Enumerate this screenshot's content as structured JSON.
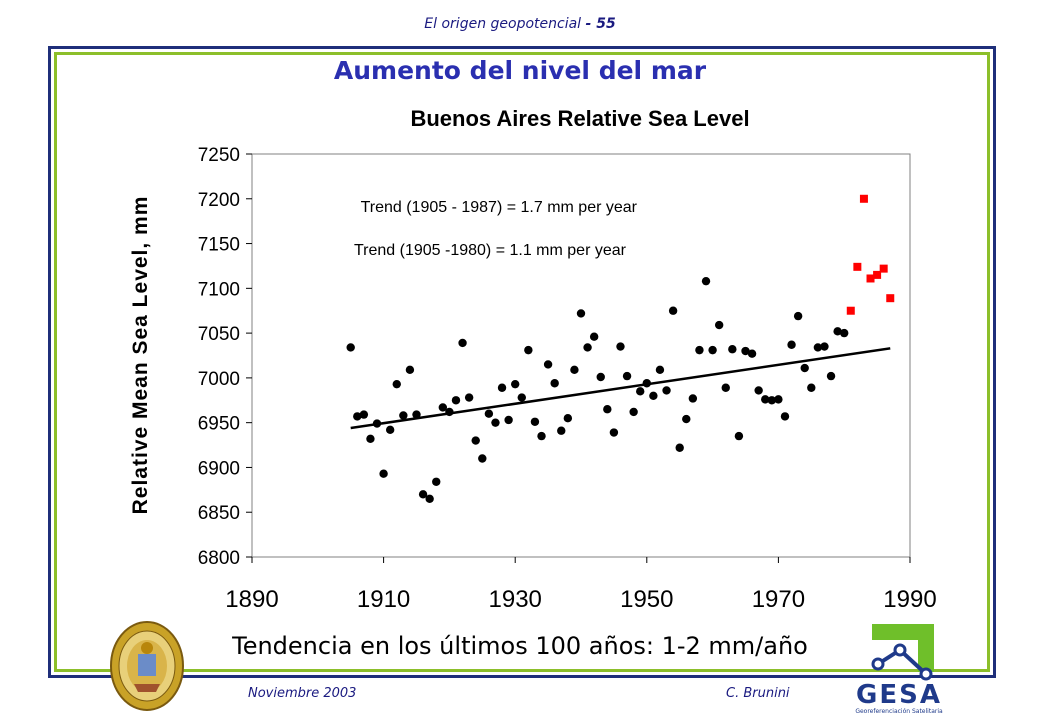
{
  "header": {
    "title": "El origen geopotencial",
    "page": "- 55"
  },
  "slide": {
    "title": "Aumento del nivel del mar",
    "subtitle": "Tendencia en los últimos 100 años: 1-2 mm/año"
  },
  "footer": {
    "date": "Noviembre 2003",
    "author": "C. Brunini"
  },
  "logos": {
    "gesa_name": "GESA",
    "gesa_tagline": "Georeferenciación Satelitaria",
    "gesa_colors": {
      "blue": "#1f3a8a",
      "green": "#6fbf2a"
    }
  },
  "chart_data": {
    "type": "scatter",
    "title": "Buenos Aires Relative Sea Level",
    "xlabel": "",
    "ylabel": "Relative Mean Sea Level, mm",
    "xlim": [
      1890,
      1990
    ],
    "ylim": [
      6800,
      7250
    ],
    "xticks": [
      1890,
      1910,
      1930,
      1950,
      1970,
      1990
    ],
    "yticks": [
      6800,
      6850,
      6900,
      6950,
      7000,
      7050,
      7100,
      7150,
      7200,
      7250
    ],
    "grid": false,
    "annotations": [
      {
        "text": "Trend (1905 - 1987) = 1.7 mm per year",
        "x": 1906.5,
        "y": 7185
      },
      {
        "text": "Trend (1905 -1980) = 1.1 mm per year",
        "x": 1905.5,
        "y": 7137
      }
    ],
    "series": [
      {
        "color": "#000000",
        "marker": "circle",
        "points": [
          [
            1905,
            7034
          ],
          [
            1906,
            6957
          ],
          [
            1907,
            6959
          ],
          [
            1908,
            6932
          ],
          [
            1909,
            6949
          ],
          [
            1910,
            6893
          ],
          [
            1911,
            6942
          ],
          [
            1912,
            6993
          ],
          [
            1913,
            6958
          ],
          [
            1914,
            7009
          ],
          [
            1915,
            6959
          ],
          [
            1916,
            6870
          ],
          [
            1917,
            6865
          ],
          [
            1918,
            6884
          ],
          [
            1919,
            6967
          ],
          [
            1920,
            6962
          ],
          [
            1921,
            6975
          ],
          [
            1922,
            7039
          ],
          [
            1923,
            6978
          ],
          [
            1924,
            6930
          ],
          [
            1925,
            6910
          ],
          [
            1926,
            6960
          ],
          [
            1927,
            6950
          ],
          [
            1928,
            6989
          ],
          [
            1929,
            6953
          ],
          [
            1930,
            6993
          ],
          [
            1931,
            6978
          ],
          [
            1932,
            7031
          ],
          [
            1933,
            6951
          ],
          [
            1934,
            6935
          ],
          [
            1935,
            7015
          ],
          [
            1936,
            6994
          ],
          [
            1937,
            6941
          ],
          [
            1938,
            6955
          ],
          [
            1939,
            7009
          ],
          [
            1940,
            7072
          ],
          [
            1941,
            7034
          ],
          [
            1942,
            7046
          ],
          [
            1943,
            7001
          ],
          [
            1944,
            6965
          ],
          [
            1945,
            6939
          ],
          [
            1946,
            7035
          ],
          [
            1947,
            7002
          ],
          [
            1948,
            6962
          ],
          [
            1949,
            6985
          ],
          [
            1950,
            6994
          ],
          [
            1951,
            6980
          ],
          [
            1952,
            7009
          ],
          [
            1953,
            6986
          ],
          [
            1954,
            7075
          ],
          [
            1955,
            6922
          ],
          [
            1956,
            6954
          ],
          [
            1957,
            6977
          ],
          [
            1958,
            7031
          ],
          [
            1959,
            7108
          ],
          [
            1960,
            7031
          ],
          [
            1961,
            7059
          ],
          [
            1962,
            6989
          ],
          [
            1963,
            7032
          ],
          [
            1964,
            6935
          ],
          [
            1965,
            7030
          ],
          [
            1966,
            7027
          ],
          [
            1967,
            6986
          ],
          [
            1968,
            6976
          ],
          [
            1969,
            6975
          ],
          [
            1970,
            6976
          ],
          [
            1971,
            6957
          ],
          [
            1972,
            7037
          ],
          [
            1973,
            7069
          ],
          [
            1974,
            7011
          ],
          [
            1975,
            6989
          ],
          [
            1976,
            7034
          ],
          [
            1977,
            7035
          ],
          [
            1978,
            7002
          ],
          [
            1979,
            7052
          ],
          [
            1980,
            7050
          ]
        ]
      },
      {
        "color": "#ff0000",
        "marker": "square",
        "points": [
          [
            1981,
            7075
          ],
          [
            1982,
            7124
          ],
          [
            1983,
            7200
          ],
          [
            1984,
            7111
          ],
          [
            1985,
            7115
          ],
          [
            1986,
            7122
          ],
          [
            1987,
            7089
          ]
        ]
      }
    ],
    "trend_line": {
      "color": "#000000",
      "from": [
        1905,
        6944
      ],
      "to": [
        1987,
        7033
      ]
    }
  }
}
